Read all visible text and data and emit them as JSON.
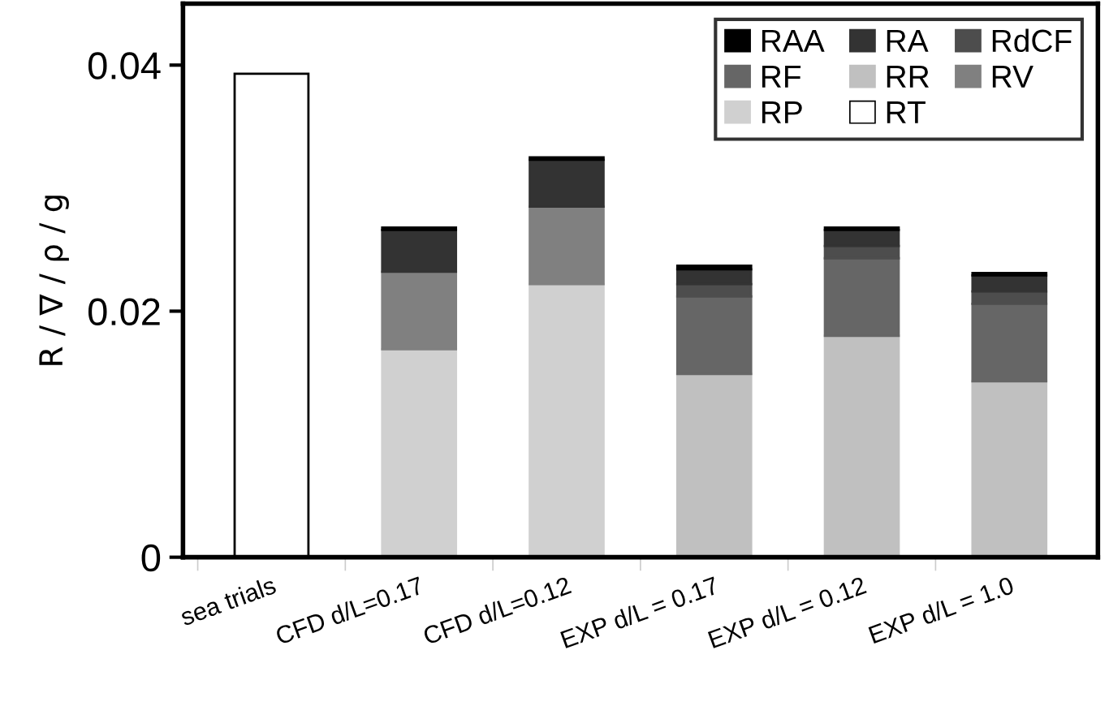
{
  "chart_data": {
    "type": "bar",
    "stacked": true,
    "ylabel": "R / ∇ / ρ / g",
    "categories": [
      "sea trials",
      "CFD d/L=0.17",
      "CFD d/L=0.12",
      "EXP d/L = 0.17",
      "EXP d/L = 0.12",
      "EXP d/L = 1.0"
    ],
    "ylim": [
      0,
      0.045
    ],
    "yticks": [
      0,
      0.02,
      0.04
    ],
    "grid": false,
    "legend": "top right",
    "series": [
      {
        "name": "RT",
        "color": "#ffffff",
        "values": [
          0.0393,
          null,
          null,
          null,
          null,
          null
        ]
      },
      {
        "name": "RP",
        "color": "#d0d0d0",
        "values": [
          null,
          0.0169,
          0.0222,
          null,
          null,
          null
        ]
      },
      {
        "name": "RV",
        "color": "#808080",
        "values": [
          null,
          0.0063,
          0.0063,
          null,
          null,
          null
        ]
      },
      {
        "name": "RR",
        "color": "#c0c0c0",
        "values": [
          null,
          null,
          null,
          0.0149,
          0.018,
          0.0143
        ]
      },
      {
        "name": "RF",
        "color": "#666666",
        "values": [
          null,
          null,
          null,
          0.0063,
          0.0063,
          0.0063
        ]
      },
      {
        "name": "RdCF",
        "color": "#4d4d4d",
        "values": [
          null,
          null,
          null,
          0.001,
          0.001,
          0.001
        ]
      },
      {
        "name": "RA",
        "color": "#333333",
        "values": [
          null,
          0.0034,
          0.0038,
          0.0012,
          0.0013,
          0.0013
        ]
      },
      {
        "name": "RAA",
        "color": "#000000",
        "values": [
          null,
          0.0002,
          0.0002,
          0.0003,
          0.0002,
          0.0002
        ]
      }
    ]
  }
}
